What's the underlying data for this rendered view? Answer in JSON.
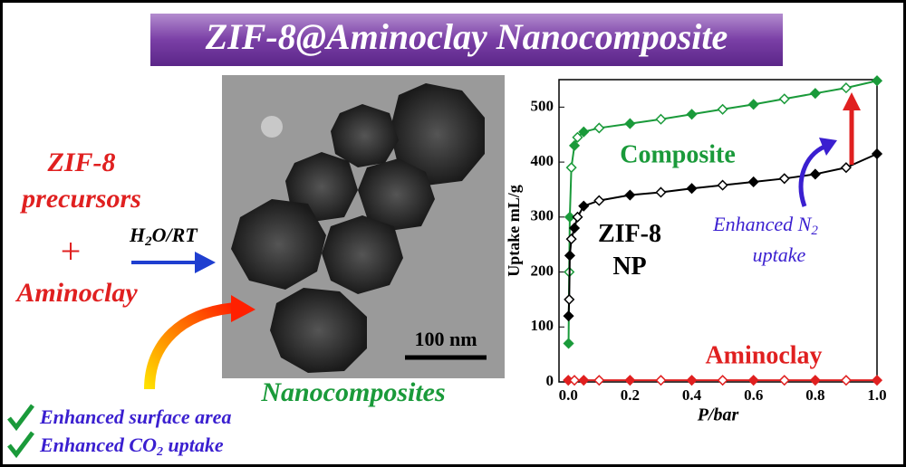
{
  "header": {
    "title": "ZIF-8@Aminoclay Nanocomposite"
  },
  "left": {
    "line1": "ZIF-8",
    "line2": "precursors",
    "plus": "+",
    "line3": "Aminoclay",
    "condition": [
      "H",
      "2",
      "O/RT"
    ]
  },
  "image": {
    "scale_bar": "100 nm",
    "caption": "Nanocomposites"
  },
  "benefits": {
    "item1": "Enhanced surface area",
    "item2": [
      "Enhanced CO",
      "2",
      " uptake"
    ]
  },
  "chart_data": {
    "type": "scatter",
    "x_label": "P/bar",
    "y_label": "Uptake mL/g",
    "xlim": [
      -0.03,
      1.0
    ],
    "ylim": [
      0,
      550
    ],
    "xticks": [
      {
        "value": 0,
        "label": "0.0"
      },
      {
        "value": 0.2,
        "label": "0.2"
      },
      {
        "value": 0.4,
        "label": "0.4"
      },
      {
        "value": 0.6,
        "label": "0.6"
      },
      {
        "value": 0.8,
        "label": "0.8"
      },
      {
        "value": 1.0,
        "label": "1.0"
      }
    ],
    "yticks": [
      0,
      100,
      200,
      300,
      400,
      500
    ],
    "annotation": [
      "Enhanced N",
      "2",
      "uptake"
    ],
    "series": [
      {
        "name": "Composite",
        "color": "#1a9a3a",
        "x": [
          0.001,
          0.003,
          0.005,
          0.01,
          0.02,
          0.03,
          0.05,
          0.1,
          0.2,
          0.3,
          0.4,
          0.5,
          0.6,
          0.7,
          0.8,
          0.9,
          1.0
        ],
        "values": [
          70,
          200,
          300,
          390,
          430,
          445,
          455,
          462,
          470,
          478,
          487,
          496,
          505,
          515,
          525,
          535,
          548
        ]
      },
      {
        "name": "ZIF-8 NP",
        "color": "#000000",
        "x": [
          0.001,
          0.003,
          0.005,
          0.01,
          0.02,
          0.03,
          0.05,
          0.1,
          0.2,
          0.3,
          0.4,
          0.5,
          0.6,
          0.7,
          0.8,
          0.9,
          1.0
        ],
        "values": [
          120,
          150,
          230,
          260,
          280,
          300,
          320,
          330,
          340,
          345,
          352,
          358,
          364,
          370,
          378,
          390,
          415
        ]
      },
      {
        "name": "Aminoclay",
        "color": "#e02020",
        "x": [
          0,
          0.02,
          0.05,
          0.1,
          0.2,
          0.3,
          0.4,
          0.5,
          0.6,
          0.7,
          0.8,
          0.9,
          1.0
        ],
        "values": [
          3,
          3,
          3,
          3,
          3,
          3,
          3,
          3,
          3,
          3,
          3,
          3,
          3
        ]
      }
    ]
  }
}
